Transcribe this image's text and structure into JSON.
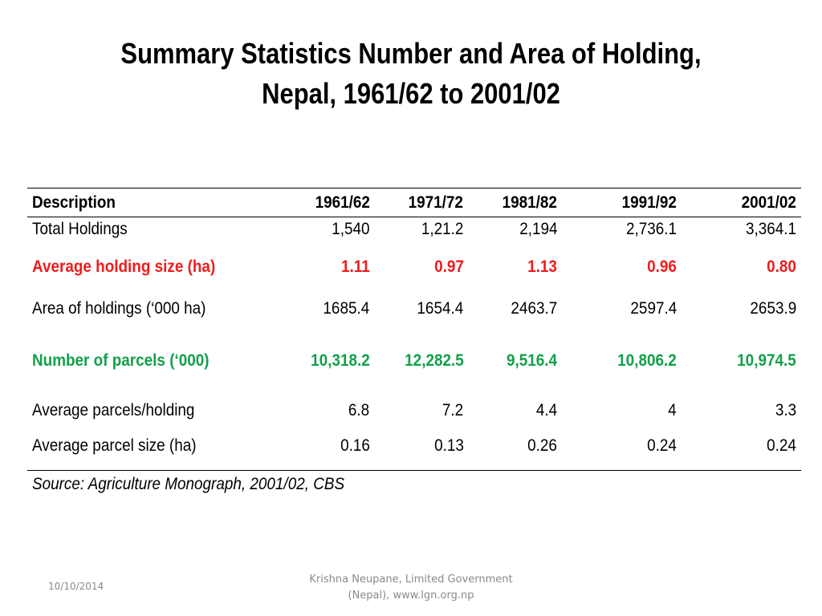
{
  "title": {
    "line1": "Summary Statistics Number and Area of Holding,",
    "line2": "Nepal, 1961/62 to 2001/02"
  },
  "table": {
    "headers": [
      "Description",
      "1961/62",
      "1971/72",
      "1981/82",
      "1991/92",
      "2001/02"
    ],
    "rows": [
      {
        "label": "Total Holdings",
        "values": [
          "1,540",
          "1,21.2",
          "2,194",
          "2,736.1",
          "3,364.1"
        ]
      },
      {
        "label": "Average holding size (ha)",
        "values": [
          "1.11",
          "0.97",
          "1.13",
          "0.96",
          "0.80"
        ]
      },
      {
        "label": "Area of holdings (‘000 ha)",
        "values": [
          "1685.4",
          "1654.4",
          "2463.7",
          "2597.4",
          "2653.9"
        ]
      },
      {
        "label": "Number of parcels (‘000)",
        "values": [
          "10,318.2",
          "12,282.5",
          "9,516.4",
          "10,806.2",
          "10,974.5"
        ]
      },
      {
        "label": "Average parcels/holding",
        "values": [
          "6.8",
          "7.2",
          "4.4",
          "4",
          "3.3"
        ]
      },
      {
        "label": "Average parcel size (ha)",
        "values": [
          "0.16",
          "0.13",
          "0.26",
          "0.24",
          "0.24"
        ]
      }
    ],
    "source": "Source: Agriculture Monograph, 2001/02, CBS"
  },
  "footer": {
    "date": "10/10/2014",
    "credit_line1": "Krishna Neupane, Limited Government",
    "credit_line2": "(Nepal), www.lgn.org.np"
  },
  "colors": {
    "highlight_red": "#ee1c1c",
    "highlight_green": "#12a04a",
    "footer_gray": "#8a8a8a"
  }
}
